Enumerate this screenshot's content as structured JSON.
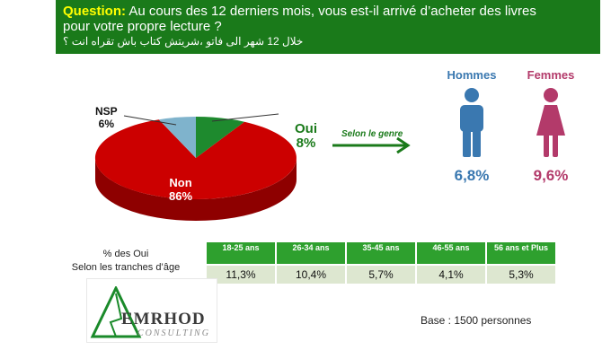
{
  "question": {
    "label": "Question:",
    "line1": " Au cours des 12 derniers mois, vous est-il arrivé d’acheter des livres",
    "line2": "pour votre propre lecture ?",
    "arabic": "خلال 12 شهر الى فاتو ،شريتش كتاب باش تقراه انت ؟"
  },
  "chart_data": [
    {
      "type": "pie",
      "slices": [
        {
          "name": "Oui",
          "value": 8,
          "label": "8%",
          "color": "#1e8a2e"
        },
        {
          "name": "Non",
          "value": 86,
          "label": "86%",
          "color": "#cc0000"
        },
        {
          "name": "NSP",
          "value": 6,
          "label": "6%",
          "color": "#7fb3cc"
        }
      ]
    },
    {
      "type": "bar",
      "categories": [
        "Hommes",
        "Femmes"
      ],
      "values": [
        6.8,
        9.6
      ],
      "value_labels": [
        "6,8%",
        "9,6%"
      ],
      "colors": [
        "#3a78b0",
        "#b33a6a"
      ]
    },
    {
      "type": "table",
      "caption_line1": "% des Oui",
      "caption_line2": "Selon les  tranches d’âge",
      "categories": [
        "18-25 ans",
        "26-34 ans",
        "35-45 ans",
        "46-55 ans",
        "56  ans et Plus"
      ],
      "values": [
        11.3,
        10.4,
        5.7,
        4.1,
        5.3
      ],
      "value_labels": [
        "11,3%",
        "10,4%",
        "5,7%",
        "4,1%",
        "5,3%"
      ]
    }
  ],
  "arrow_label": "Selon le genre",
  "icons": {
    "men": "man-icon",
    "women": "woman-icon"
  },
  "logo": {
    "word1": "EMRHOD",
    "word2": "CONSULTING"
  },
  "base": "Base : 1500 personnes"
}
